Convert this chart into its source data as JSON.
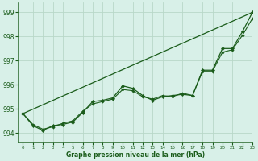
{
  "title": "Graphe pression niveau de la mer (hPa)",
  "background_color": "#d8f0e8",
  "grid_color": "#b8d8c8",
  "line_color": "#1a5c1a",
  "marker_color": "#1a5c1a",
  "xlim": [
    -0.5,
    23
  ],
  "ylim": [
    993.6,
    999.4
  ],
  "yticks": [
    994,
    995,
    996,
    997,
    998,
    999
  ],
  "xticks": [
    0,
    1,
    2,
    3,
    4,
    5,
    6,
    7,
    8,
    9,
    10,
    11,
    12,
    13,
    14,
    15,
    16,
    17,
    18,
    19,
    20,
    21,
    22,
    23
  ],
  "series_main": [
    994.8,
    994.3,
    994.1,
    994.3,
    994.35,
    994.45,
    994.85,
    995.3,
    995.35,
    995.45,
    995.95,
    995.85,
    995.55,
    995.35,
    995.5,
    995.55,
    995.6,
    995.55,
    996.6,
    996.6,
    997.5,
    997.5,
    998.2,
    999.0
  ],
  "series_smooth": [
    994.8,
    994.35,
    994.15,
    994.25,
    994.4,
    994.5,
    994.9,
    995.2,
    995.3,
    995.4,
    995.8,
    995.75,
    995.5,
    995.4,
    995.55,
    995.5,
    995.65,
    995.55,
    996.55,
    996.55,
    997.35,
    997.45,
    998.05,
    998.75
  ],
  "trend_line": [
    994.8,
    999.0
  ],
  "trend_x": [
    0,
    23
  ]
}
